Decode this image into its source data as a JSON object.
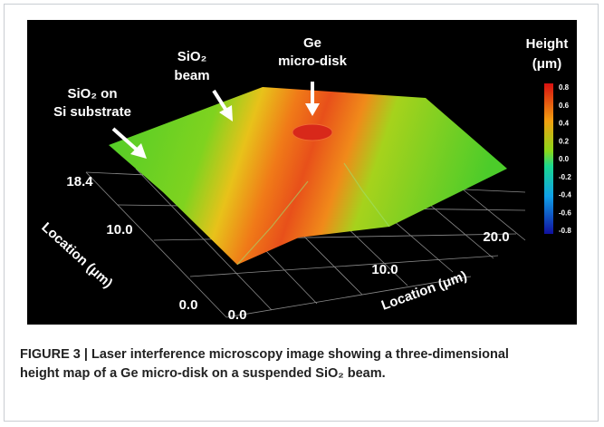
{
  "figure": {
    "annotations": {
      "ge_line1": "Ge",
      "ge_line2": "micro-disk",
      "beam_line1": "SiO₂",
      "beam_line2": "beam",
      "substrate_line1": "SiO₂ on",
      "substrate_line2": "Si substrate"
    },
    "colorbar": {
      "title": "Height",
      "unit": "(μm)",
      "ticks": [
        "0.8",
        "0.6",
        "0.4",
        "0.2",
        "0.0",
        "-0.2",
        "-0.4",
        "-0.6",
        "-0.8"
      ]
    },
    "left_axis": {
      "ticks": [
        "18.4",
        "10.0",
        "0.0"
      ],
      "label": "Location (μm)"
    },
    "bottom_axis": {
      "ticks": [
        "0.0",
        "10.0",
        "20.0"
      ],
      "label": "Location (μm)"
    }
  },
  "caption": {
    "label": "FIGURE 3 |",
    "text": "Laser interference microscopy image showing a three-dimensional height map of a Ge micro-disk on a suspended SiO₂ beam."
  }
}
